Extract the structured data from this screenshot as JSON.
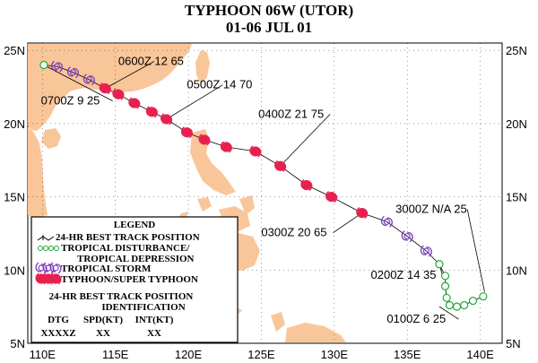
{
  "title": "TYPHOON 06W (UTOR)",
  "subtitle": "01-06 JUL 01",
  "lat_labels": [
    "25N",
    "20N",
    "15N",
    "10N",
    "5N"
  ],
  "lon_labels": [
    "110E",
    "115E",
    "120E",
    "125E",
    "130E",
    "135E",
    "140E"
  ],
  "map_extent": {
    "lon_min": 109,
    "lon_max": 141.5,
    "lat_min": 5,
    "lat_max": 25.5
  },
  "colors": {
    "land": "#f9c69a",
    "tropical_storm": "#8040c0",
    "typhoon": "#e8204e",
    "depression": "#22a83a",
    "track": "#000000"
  },
  "track": [
    {
      "lon": 140.2,
      "lat": 8.2,
      "type": "depression"
    },
    {
      "lon": 139.5,
      "lat": 7.9,
      "type": "depression"
    },
    {
      "lon": 138.9,
      "lat": 7.6,
      "type": "depression"
    },
    {
      "lon": 138.4,
      "lat": 7.5,
      "type": "depression"
    },
    {
      "lon": 137.9,
      "lat": 7.6,
      "type": "depression"
    },
    {
      "lon": 137.7,
      "lat": 8.1,
      "type": "depression"
    },
    {
      "lon": 137.6,
      "lat": 8.9,
      "type": "depression"
    },
    {
      "lon": 137.6,
      "lat": 9.6,
      "type": "depression"
    },
    {
      "lon": 137.2,
      "lat": 10.4,
      "type": "depression"
    },
    {
      "lon": 136.3,
      "lat": 11.3,
      "type": "storm"
    },
    {
      "lon": 135.0,
      "lat": 12.3,
      "type": "storm"
    },
    {
      "lon": 133.6,
      "lat": 13.3,
      "type": "storm"
    },
    {
      "lon": 131.9,
      "lat": 13.9,
      "type": "typhoon"
    },
    {
      "lon": 129.8,
      "lat": 15.0,
      "type": "typhoon"
    },
    {
      "lon": 128.1,
      "lat": 15.8,
      "type": "typhoon"
    },
    {
      "lon": 126.3,
      "lat": 17.1,
      "type": "typhoon"
    },
    {
      "lon": 124.6,
      "lat": 18.1,
      "type": "typhoon"
    },
    {
      "lon": 122.6,
      "lat": 18.4,
      "type": "typhoon"
    },
    {
      "lon": 121.1,
      "lat": 18.9,
      "type": "typhoon"
    },
    {
      "lon": 119.9,
      "lat": 19.4,
      "type": "typhoon"
    },
    {
      "lon": 118.5,
      "lat": 20.3,
      "type": "typhoon"
    },
    {
      "lon": 117.5,
      "lat": 20.8,
      "type": "typhoon"
    },
    {
      "lon": 116.3,
      "lat": 21.4,
      "type": "typhoon"
    },
    {
      "lon": 115.2,
      "lat": 22.0,
      "type": "typhoon"
    },
    {
      "lon": 114.3,
      "lat": 22.4,
      "type": "typhoon"
    },
    {
      "lon": 113.2,
      "lat": 23.0,
      "type": "storm"
    },
    {
      "lon": 112.1,
      "lat": 23.5,
      "type": "storm"
    },
    {
      "lon": 111.0,
      "lat": 23.9,
      "type": "storm"
    },
    {
      "lon": 110.1,
      "lat": 24.0,
      "type": "depression"
    }
  ],
  "point_labels": [
    {
      "text": "3000Z N/A  25",
      "lon": 134.2,
      "lat": 13.9,
      "leader_lon": 140.3,
      "leader_lat": 8.5
    },
    {
      "text": "0200Z 14  35",
      "lon": 132.5,
      "lat": 9.4,
      "leader_lon": 137.2,
      "leader_lat": 10.4
    },
    {
      "text": "0100Z  6  25",
      "lon": 133.6,
      "lat": 6.4,
      "leader_lon": 137.2,
      "leader_lat": 7.5
    },
    {
      "text": "0300Z 20  65",
      "lon": 125.0,
      "lat": 12.3,
      "leader_lon": 131.9,
      "leader_lat": 13.9
    },
    {
      "text": "0400Z 21  75",
      "lon": 124.8,
      "lat": 20.4,
      "leader_lon": 126.3,
      "leader_lat": 17.1
    },
    {
      "text": "0500Z 14  70",
      "lon": 119.9,
      "lat": 22.4,
      "leader_lon": 118.5,
      "leader_lat": 20.3
    },
    {
      "text": "0600Z 12  65",
      "lon": 115.2,
      "lat": 24.0,
      "leader_lon": 114.3,
      "leader_lat": 22.4
    },
    {
      "text": "0700Z  9  25",
      "lon": 109.9,
      "lat": 21.3,
      "leader_lon": 110.1,
      "leader_lat": 24.0
    }
  ],
  "legend": {
    "heading": "LEGEND",
    "items": [
      {
        "symbol": "best-track",
        "lines": [
          "24-HR BEST TRACK POSITION"
        ]
      },
      {
        "symbol": "depression",
        "lines": [
          "TROPICAL DISTURBANCE/",
          "TROPICAL DEPRESSION"
        ]
      },
      {
        "symbol": "storm",
        "lines": [
          "TROPICAL STORM"
        ]
      },
      {
        "symbol": "typhoon",
        "lines": [
          "TYPHOON/SUPER TYPHOON"
        ]
      }
    ],
    "id_heading": "24-HR BEST TRACK POSITION",
    "id_subheading": "IDENTIFICATION",
    "columns": [
      "DTG",
      "SPD(KT)",
      "INT(KT)"
    ],
    "examples": [
      "XXXXZ",
      "XX",
      "XX"
    ]
  }
}
